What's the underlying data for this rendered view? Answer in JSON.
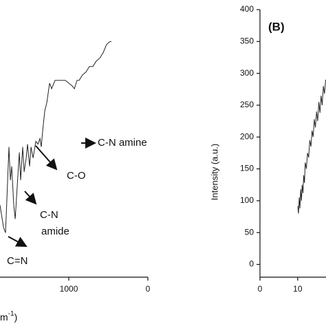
{
  "chart_data": [
    {
      "type": "line",
      "x_label_parts": [
        "m",
        "-1",
        ")"
      ],
      "annotations": [
        "C-N amine",
        "C-O",
        "C-N",
        "amide",
        "C=N"
      ],
      "xlim": [
        1870,
        0
      ],
      "xticks": [
        1000,
        0
      ],
      "ylim": [
        0,
        100
      ],
      "color": "#222",
      "series": [
        {
          "x": [
            1870,
            1826,
            1800,
            1783,
            1757,
            1739,
            1722,
            1696,
            1678,
            1652,
            1626,
            1609,
            1583,
            1565,
            1539,
            1522,
            1496,
            1478,
            1452,
            1417,
            1391,
            1365,
            1348,
            1330,
            1304,
            1278,
            1243,
            1217,
            1174,
            1130,
            1087,
            1043,
            1000,
            957,
            930,
            896,
            870,
            826,
            783,
            739,
            696,
            652,
            609,
            565,
            522,
            478,
            461
          ],
          "values": [
            26,
            18,
            16,
            28,
            47,
            35,
            40,
            26,
            21,
            33,
            45,
            35,
            47,
            38,
            43,
            48,
            40,
            47,
            43,
            49,
            48,
            50,
            47,
            53,
            60,
            63,
            70,
            68,
            71,
            71,
            71,
            71,
            70,
            69,
            68,
            71,
            71,
            73,
            74,
            76,
            76,
            78,
            79,
            81,
            84,
            85,
            85
          ]
        }
      ]
    },
    {
      "type": "line",
      "panel_label": "(B)",
      "y_label": "Intensity (a.u.)",
      "xlim": [
        0,
        17.5
      ],
      "xticks": [
        0,
        10
      ],
      "ylim": [
        -20,
        400
      ],
      "yticks": [
        0,
        50,
        100,
        150,
        200,
        250,
        300,
        350,
        400
      ],
      "color": "#222",
      "series": [
        {
          "x": [
            10,
            10.2,
            10.4,
            10.6,
            10.8,
            11,
            11.2,
            11.4,
            11.6,
            11.8,
            12,
            12.3,
            12.6,
            12.9,
            13.2,
            13.5,
            13.8,
            14.1,
            14.4,
            14.7,
            15,
            15.3,
            15.6,
            15.9,
            16.2,
            16.5,
            16.8,
            17.1,
            17.4
          ],
          "values": [
            92,
            80,
            105,
            88,
            118,
            100,
            125,
            112,
            140,
            128,
            160,
            150,
            175,
            168,
            195,
            185,
            210,
            200,
            228,
            215,
            240,
            225,
            255,
            238,
            265,
            250,
            280,
            268,
            290
          ]
        }
      ]
    }
  ]
}
